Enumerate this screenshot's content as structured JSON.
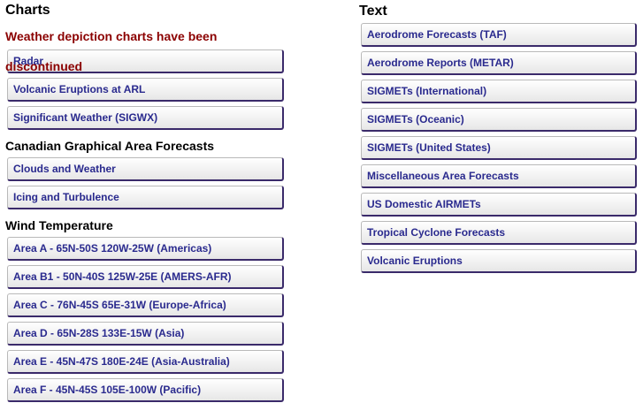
{
  "charts": {
    "heading": "Charts",
    "notice": "Weather depiction charts have been discontinued",
    "items": [
      "Radar",
      "Volcanic Eruptions at ARL",
      "Significant Weather (SIGWX)"
    ]
  },
  "canadian": {
    "heading": "Canadian Graphical Area Forecasts",
    "items": [
      "Clouds and Weather",
      "Icing and Turbulence"
    ]
  },
  "wind": {
    "heading": "Wind Temperature",
    "items": [
      "Area A - 65N-50S 120W-25W (Americas)",
      "Area B1 - 50N-40S 125W-25E (AMERS-AFR)",
      "Area C - 76N-45S 65E-31W (Europe-Africa)",
      "Area D - 65N-28S 133E-15W (Asia)",
      "Area E - 45N-47S 180E-24E (Asia-Australia)",
      "Area F - 45N-45S 105E-100W (Pacific)"
    ]
  },
  "text": {
    "heading": "Text",
    "items": [
      "Aerodrome Forecasts (TAF)",
      "Aerodrome Reports (METAR)",
      "SIGMETs (International)",
      "SIGMETs (Oceanic)",
      "SIGMETs (United States)",
      "Miscellaneous Area Forecasts",
      "US Domestic AIRMETs",
      "Tropical Cyclone Forecasts",
      "Volcanic Eruptions"
    ]
  },
  "colors": {
    "button_text": "#2a2a8e",
    "notice_text": "#8b0000",
    "button_shadow": "#3a2a6a"
  }
}
